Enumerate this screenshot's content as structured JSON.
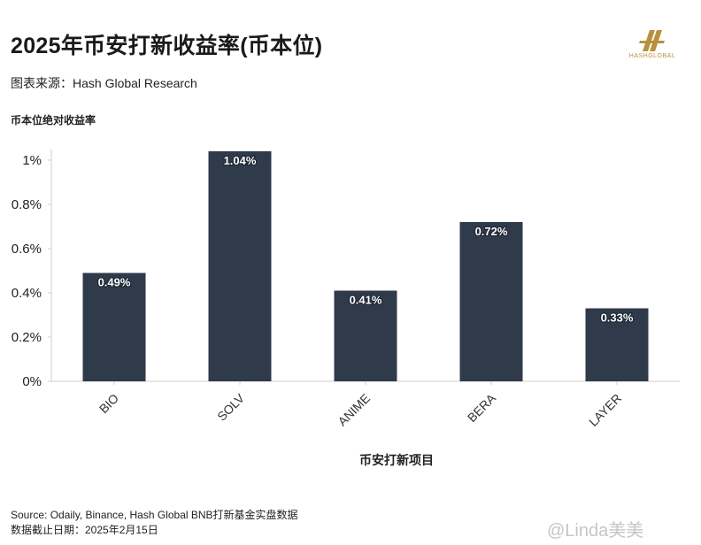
{
  "title": "2025年币安打新收益率(币本位)",
  "source_line": "图表来源：Hash Global Research",
  "brand": {
    "name": "HASHGLOBAL",
    "color": "#b8903f"
  },
  "footer": {
    "line1": "Source: Odaily, Binance, Hash Global BNB打新基金实盘数据",
    "line2": "数据截止日期：2025年2月15日"
  },
  "watermark": "@Linda美美",
  "chart_data": {
    "type": "bar",
    "ylabel": "币本位绝对收益率",
    "xlabel": "币安打新项目",
    "categories": [
      "BIO",
      "SOLV",
      "ANIME",
      "BERA",
      "LAYER"
    ],
    "values": [
      0.49,
      1.04,
      0.41,
      0.72,
      0.33
    ],
    "value_labels": [
      "0.49%",
      "1.04%",
      "0.41%",
      "0.72%",
      "0.33%"
    ],
    "ylim": [
      0,
      1.0
    ],
    "yticks": [
      0,
      0.2,
      0.4,
      0.6,
      0.8,
      1.0
    ],
    "ytick_labels": [
      "0%",
      "0.2%",
      "0.4%",
      "0.6%",
      "0.8%",
      "1%"
    ],
    "bar_color": "#2f3a4a",
    "grid": false
  }
}
